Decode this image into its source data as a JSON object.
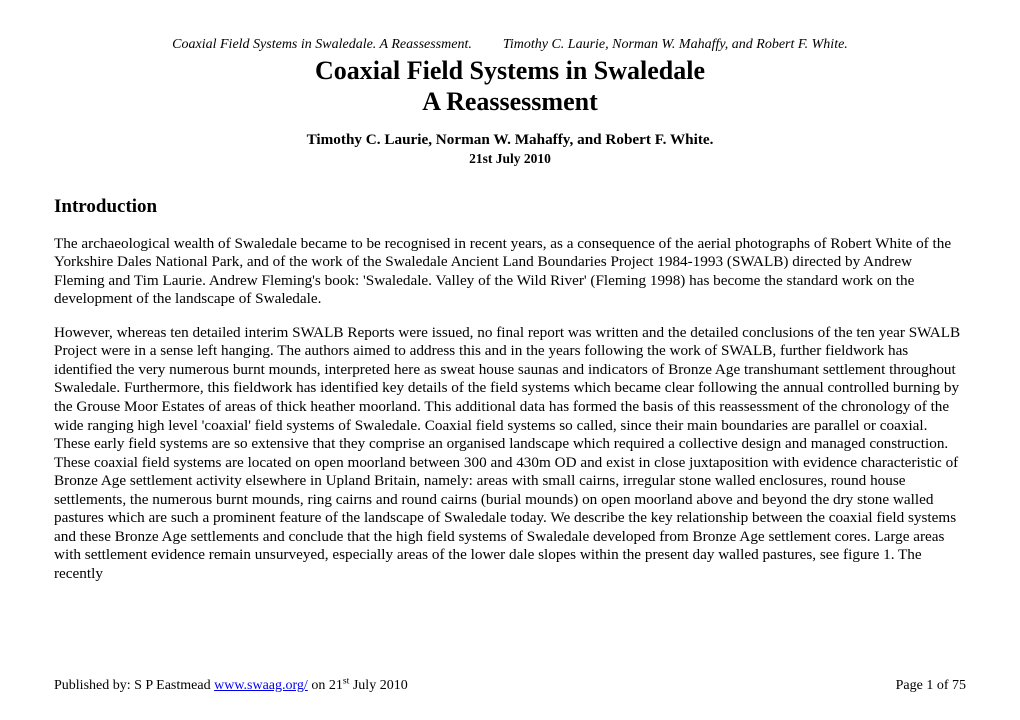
{
  "running_header": {
    "left": "Coaxial Field Systems in Swaledale. A Reassessment.",
    "right": "Timothy C. Laurie, Norman W. Mahaffy, and Robert F. White."
  },
  "title_line1": "Coaxial Field Systems in Swaledale",
  "title_line2": "A Reassessment",
  "authors": "Timothy C. Laurie, Norman W. Mahaffy, and Robert F. White.",
  "date": "21st July 2010",
  "section_heading": "Introduction",
  "para1": "The archaeological wealth of Swaledale became to be recognised in recent years, as a consequence of the aerial photographs of Robert White of the Yorkshire Dales National Park, and of the work of the Swaledale Ancient Land Boundaries Project 1984-1993 (SWALB) directed by Andrew Fleming and Tim Laurie. Andrew Fleming's book: 'Swaledale. Valley of the Wild River' (Fleming 1998) has become the standard work on the development of the landscape of Swaledale.",
  "para2": "However, whereas ten detailed interim SWALB Reports were issued, no final report was written and the detailed conclusions of the ten year SWALB Project were in a sense left hanging. The authors aimed to address this and in the years following the work of SWALB, further fieldwork has identified the very numerous burnt mounds, interpreted here as sweat house saunas and indicators of Bronze Age transhumant settlement throughout Swaledale. Furthermore, this fieldwork has identified key details of the field systems which became clear following the annual controlled burning by the Grouse Moor Estates of areas of thick heather moorland. This additional data has formed the basis of this reassessment of the chronology of the wide ranging high level 'coaxial' field systems of Swaledale. Coaxial field systems so called, since their main boundaries are parallel or coaxial. These early field systems are so extensive that they comprise an organised landscape which required a collective design and managed construction. These coaxial field systems are located on open moorland between 300 and 430m OD and exist in close juxtaposition with evidence characteristic of Bronze Age settlement activity elsewhere in Upland Britain, namely: areas with small cairns, irregular stone walled enclosures, round house settlements, the numerous burnt mounds, ring cairns and  round cairns (burial mounds) on open moorland above and beyond the dry stone walled pastures which are such a prominent feature of the landscape of Swaledale today. We describe the key relationship between the coaxial field systems and these Bronze Age settlements and conclude that the high field systems of Swaledale developed from Bronze Age settlement cores. Large areas with settlement evidence remain unsurveyed, especially areas of the lower dale slopes within the present day walled pastures, see figure 1.  The recently",
  "footer": {
    "published_prefix": "Published by: S P Eastmead ",
    "link_text": "www.swaag.org/",
    "published_suffix_before_sup": "  on 21",
    "sup": "st",
    "published_suffix_after_sup": " July 2010",
    "page": "Page 1 of 75"
  }
}
